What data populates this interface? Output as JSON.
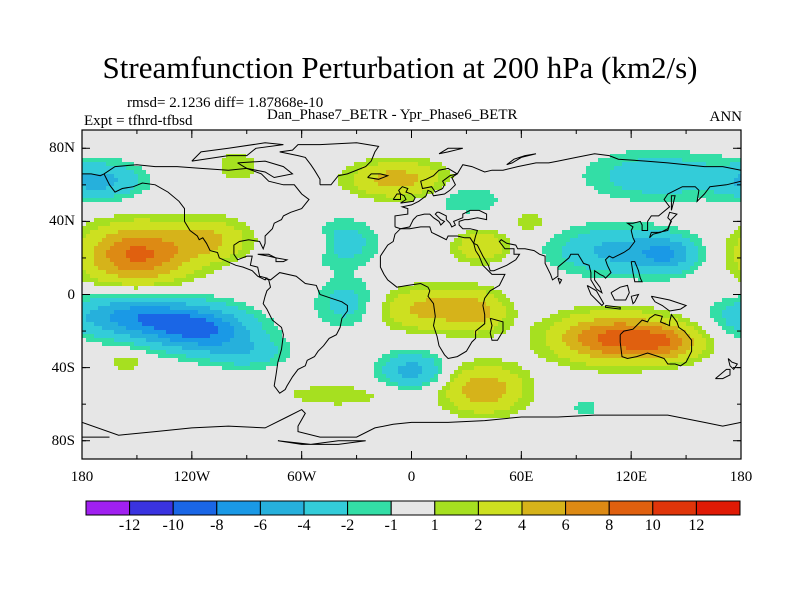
{
  "chart_data": {
    "type": "heatmap",
    "title": "Streamfunction Perturbation at 200 hPa (km2/s)",
    "subtitle_left_1": "rmsd= 2.1236 diff= 1.87868e-10",
    "subtitle_left_2": "Expt = tfhrd-tfbsd",
    "subtitle_center": "Dan_Phase7_BETR - Ypr_Phase6_BETR",
    "subtitle_right": "ANN",
    "x_ticks": [
      "180",
      "120W",
      "60W",
      "0",
      "60E",
      "120E",
      "180"
    ],
    "y_ticks": [
      "80N",
      "40N",
      "0",
      "40S",
      "80S"
    ],
    "xlim": [
      -180,
      180
    ],
    "ylim": [
      -90,
      90
    ],
    "colorbar": {
      "labels": [
        "-12",
        "-10",
        "-8",
        "-6",
        "-4",
        "-2",
        "-1",
        "1",
        "2",
        "4",
        "6",
        "8",
        "10",
        "12"
      ],
      "levels": [
        -14,
        -12,
        -10,
        -8,
        -6,
        -4,
        -2,
        -1,
        1,
        2,
        4,
        6,
        8,
        10,
        12,
        14
      ],
      "colors": [
        "#a020f0",
        "#3a33e0",
        "#1a66e6",
        "#1a99e6",
        "#26b0dc",
        "#33ccd9",
        "#33dea6",
        "#e6e6e6",
        "#a6e020",
        "#cde020",
        "#d6b31a",
        "#dd8a14",
        "#e0600f",
        "#e0350a",
        "#e01a05"
      ]
    },
    "anomalies": [
      {
        "lon": -150,
        "lat": 22,
        "amp": 8.5,
        "slon": 20,
        "slat": 11
      },
      {
        "lon": -110,
        "lat": 30,
        "amp": 4,
        "slon": 15,
        "slat": 8
      },
      {
        "lon": -150,
        "lat": -12,
        "amp": -7,
        "slon": 26,
        "slat": 8
      },
      {
        "lon": -115,
        "lat": -20,
        "amp": -7.5,
        "slon": 20,
        "slat": 8
      },
      {
        "lon": -90,
        "lat": -32,
        "amp": -3,
        "slon": 15,
        "slat": 6
      },
      {
        "lon": -35,
        "lat": -5,
        "amp": -3,
        "slon": 12,
        "slat": 9
      },
      {
        "lon": -38,
        "lat": 28,
        "amp": -3,
        "slon": 14,
        "slat": 9
      },
      {
        "lon": -52,
        "lat": 28,
        "amp": 2,
        "slon": 7,
        "slat": 5
      },
      {
        "lon": -8,
        "lat": 63,
        "amp": 5,
        "slon": 18,
        "slat": 7
      },
      {
        "lon": 30,
        "lat": 52,
        "amp": -2,
        "slon": 14,
        "slat": 6
      },
      {
        "lon": 38,
        "lat": 26,
        "amp": 4,
        "slon": 10,
        "slat": 6
      },
      {
        "lon": 12,
        "lat": -8,
        "amp": 5,
        "slon": 20,
        "slat": 8
      },
      {
        "lon": 38,
        "lat": -10,
        "amp": 3,
        "slon": 10,
        "slat": 8
      },
      {
        "lon": 0,
        "lat": -42,
        "amp": -5,
        "slon": 12,
        "slat": 7
      },
      {
        "lon": 40,
        "lat": -52,
        "amp": 5.5,
        "slon": 15,
        "slat": 9
      },
      {
        "lon": 110,
        "lat": -24,
        "amp": 8.5,
        "slon": 22,
        "slat": 9
      },
      {
        "lon": 140,
        "lat": -26,
        "amp": 5,
        "slon": 14,
        "slat": 7
      },
      {
        "lon": 110,
        "lat": 24,
        "amp": -4.5,
        "slon": 22,
        "slat": 9
      },
      {
        "lon": 140,
        "lat": 22,
        "amp": -5,
        "slon": 12,
        "slat": 7
      },
      {
        "lon": 135,
        "lat": 65,
        "amp": -3.5,
        "slon": 26,
        "slat": 9
      },
      {
        "lon": -170,
        "lat": 62,
        "amp": -4.5,
        "slon": 16,
        "slat": 7
      },
      {
        "lon": -95,
        "lat": 70,
        "amp": 2,
        "slon": 8,
        "slat": 6
      },
      {
        "lon": 65,
        "lat": 40,
        "amp": 1.6,
        "slon": 8,
        "slat": 5
      },
      {
        "lon": 95,
        "lat": -62,
        "amp": -1.8,
        "slon": 5,
        "slat": 3
      },
      {
        "lon": -155,
        "lat": -37,
        "amp": 1.7,
        "slon": 8,
        "slat": 4
      },
      {
        "lon": -40,
        "lat": -55,
        "amp": 1.4,
        "slon": 30,
        "slat": 6
      }
    ]
  }
}
